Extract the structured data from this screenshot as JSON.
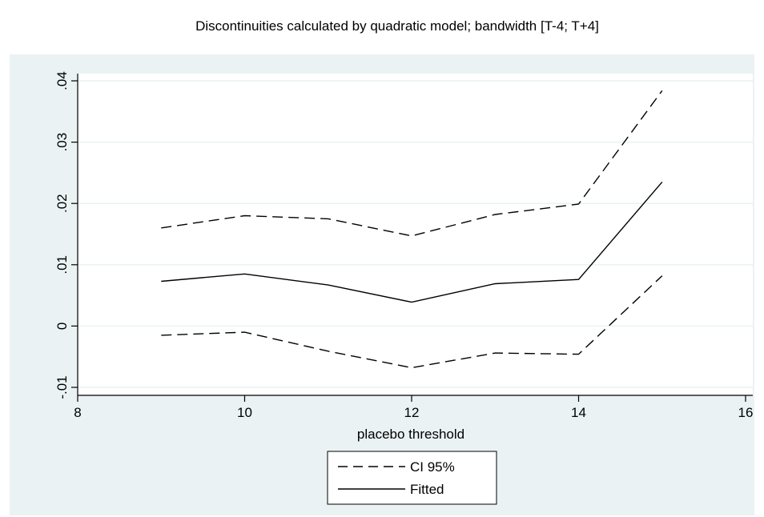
{
  "chart_data": {
    "type": "line",
    "title": "Discontinuities calculated by quadratic model; bandwidth [T-4; T+4]",
    "xlabel": "placebo threshold",
    "ylabel": "",
    "xlim": [
      8,
      16
    ],
    "ylim": [
      -0.01,
      0.04
    ],
    "x_ticks": [
      8,
      10,
      12,
      14,
      16
    ],
    "x_tick_labels": [
      "8",
      "10",
      "12",
      "14",
      "16"
    ],
    "y_ticks": [
      -0.01,
      0,
      0.01,
      0.02,
      0.03,
      0.04
    ],
    "y_tick_labels": [
      "-.01",
      "0",
      ".01",
      ".02",
      ".03",
      ".04"
    ],
    "grid": true,
    "legend_position": "bottom-center",
    "x": [
      9,
      10,
      11,
      12,
      13,
      14,
      15
    ],
    "series": [
      {
        "name": "CI 95%",
        "style": "dashed",
        "values": [
          0.016,
          0.018,
          0.0175,
          0.0147,
          0.0182,
          0.0199,
          0.0384
        ]
      },
      {
        "name": "Fitted",
        "style": "solid",
        "values": [
          0.0073,
          0.0085,
          0.0067,
          0.0039,
          0.0069,
          0.0076,
          0.0235
        ]
      },
      {
        "name": "CI 95%",
        "style": "dashed",
        "values": [
          -0.0015,
          -0.001,
          -0.0041,
          -0.0068,
          -0.0044,
          -0.0046,
          0.0082
        ]
      }
    ],
    "legend": [
      {
        "label": "CI 95%",
        "style": "dashed"
      },
      {
        "label": "Fitted",
        "style": "solid"
      }
    ],
    "colors": {
      "outer_background": "#eaf2f3",
      "plot_background": "#ffffff",
      "grid": "#eaf2f3",
      "line": "#000000"
    }
  }
}
